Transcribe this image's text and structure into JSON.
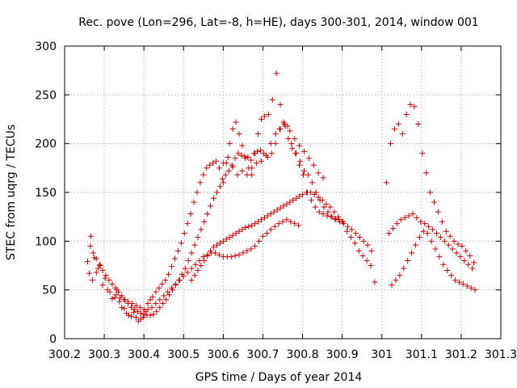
{
  "chart_data": {
    "type": "scatter",
    "title": "Rec. pove (Lon=296, Lat=-8, h=HE), days 300-301, 2014, window 001",
    "xlabel": "GPS time / Days of year 2014",
    "ylabel": "STEC from uqrg / TECUs",
    "xlim": [
      300.2,
      301.3
    ],
    "ylim": [
      0,
      300
    ],
    "xticks": [
      300.2,
      300.3,
      300.4,
      300.5,
      300.6,
      300.7,
      300.8,
      300.9,
      301.0,
      301.1,
      301.2,
      301.3
    ],
    "xtick_labels": [
      "300.2",
      "300.3",
      "300.4",
      "300.5",
      "300.6",
      "300.7",
      "300.8",
      "300.9",
      "301",
      "301.1",
      "301.2",
      "301.3"
    ],
    "yticks": [
      0,
      50,
      100,
      150,
      200,
      250,
      300
    ],
    "ytick_labels": [
      "0",
      "50",
      "100",
      "150",
      "200",
      "250",
      "300"
    ],
    "grid": true,
    "marker": "+",
    "color": "#cc0000",
    "x": [
      300.258,
      300.262,
      300.266,
      300.27,
      300.275,
      300.28,
      300.285,
      300.29,
      300.296,
      300.302,
      300.308,
      300.314,
      300.32,
      300.326,
      300.332,
      300.338,
      300.344,
      300.35,
      300.356,
      300.362,
      300.368,
      300.374,
      300.38,
      300.386,
      300.392,
      300.398,
      300.404,
      300.41,
      300.416,
      300.422,
      300.43,
      300.438,
      300.446,
      300.454,
      300.462,
      300.47,
      300.478,
      300.486,
      300.494,
      300.502,
      300.51,
      300.518,
      300.526,
      300.534,
      300.542,
      300.55,
      300.558,
      300.566,
      300.574,
      300.582,
      300.59,
      300.598,
      300.606,
      300.614,
      300.622,
      300.63,
      300.638,
      300.646,
      300.654,
      300.662,
      300.67,
      300.678,
      300.686,
      300.694,
      300.702,
      300.712,
      300.722,
      300.732,
      300.742,
      300.752,
      300.762,
      300.772,
      300.782,
      300.792,
      300.802,
      300.812,
      300.822,
      300.832,
      300.842,
      300.852,
      300.862,
      300.872,
      300.882,
      300.892,
      300.902,
      300.912,
      300.922,
      300.932,
      300.942,
      300.952,
      300.962,
      300.972,
      300.982,
      301.012,
      301.022,
      301.032,
      301.042,
      301.052,
      301.062,
      301.072,
      301.082,
      301.092,
      301.102,
      301.112,
      301.122,
      301.132,
      301.142,
      301.152,
      301.162,
      301.172,
      301.182,
      301.192,
      301.202,
      301.212,
      301.222,
      301.232,
      300.265,
      300.272,
      300.28,
      300.288,
      300.296,
      300.304,
      300.312,
      300.32,
      300.328,
      300.336,
      300.344,
      300.352,
      300.36,
      300.368,
      300.376,
      300.384,
      300.392,
      300.4,
      300.408,
      300.416,
      300.424,
      300.432,
      300.44,
      300.448,
      300.456,
      300.464,
      300.472,
      300.48,
      300.488,
      300.496,
      300.504,
      300.512,
      300.52,
      300.528,
      300.536,
      300.544,
      300.552,
      300.56,
      300.568,
      300.576,
      300.584,
      300.592,
      300.6,
      300.608,
      300.616,
      300.624,
      300.632,
      300.64,
      300.648,
      300.656,
      300.664,
      300.672,
      300.68,
      300.688,
      300.696,
      300.704,
      300.714,
      300.724,
      300.734,
      300.744,
      300.754,
      300.764,
      300.774,
      300.784,
      300.794,
      300.804,
      300.814,
      300.824,
      300.834,
      300.844,
      300.854,
      300.864,
      300.874,
      300.884,
      300.894,
      300.904,
      300.914,
      300.924,
      300.934,
      300.944,
      300.954,
      300.964,
      300.974,
      301.018,
      301.028,
      301.038,
      301.048,
      301.058,
      301.068,
      301.078,
      301.088,
      301.098,
      301.108,
      301.118,
      301.128,
      301.138,
      301.148,
      301.158,
      301.168,
      301.178,
      301.188,
      301.198,
      301.208,
      301.218,
      301.228,
      300.33,
      300.34,
      300.35,
      300.36,
      300.37,
      300.38,
      300.39,
      300.4,
      300.41,
      300.42,
      300.43,
      300.44,
      300.45,
      300.46,
      300.47,
      300.48,
      300.49,
      300.5,
      300.51,
      300.52,
      300.53,
      300.54,
      300.55,
      300.56,
      300.57,
      300.58,
      300.59,
      300.6,
      300.61,
      300.62,
      300.63,
      300.64,
      300.65,
      300.66,
      300.67,
      300.68,
      300.69,
      300.7,
      300.71,
      300.72,
      300.73,
      300.74,
      300.75,
      300.76,
      300.77,
      300.78,
      300.79,
      300.52,
      300.528,
      300.536,
      300.544,
      300.552,
      300.56,
      300.568,
      300.576,
      300.584,
      300.592,
      300.6,
      300.608,
      300.616,
      300.624,
      300.632,
      300.64,
      300.648,
      300.656,
      300.664,
      300.672,
      300.68,
      300.688,
      300.696,
      300.704,
      300.712,
      300.72,
      300.728,
      300.736,
      300.744,
      300.752,
      300.76,
      300.768,
      300.776,
      300.784,
      300.792,
      300.8,
      300.81,
      300.82,
      300.83,
      300.84,
      300.85,
      300.86,
      300.87,
      300.88,
      300.89,
      300.9,
      300.6,
      300.612,
      300.624,
      300.636,
      300.648,
      300.66,
      300.672,
      300.684,
      300.696,
      300.708,
      300.72,
      300.732,
      300.744,
      300.756,
      300.768,
      300.78,
      300.792,
      300.804,
      300.816,
      300.828,
      300.84,
      300.852,
      301.025,
      301.035,
      301.045,
      301.055,
      301.065,
      301.075,
      301.085,
      301.095,
      301.105,
      301.115,
      301.125,
      301.135,
      301.145,
      301.155,
      301.165,
      301.175,
      301.185,
      301.195,
      301.205,
      301.215,
      301.225,
      301.235
    ],
    "y": [
      79,
      67,
      105,
      60,
      83,
      68,
      72,
      75,
      55,
      62,
      50,
      48,
      41,
      42,
      50,
      38,
      32,
      31,
      26,
      24,
      23,
      27,
      22,
      18,
      20,
      22,
      28,
      36,
      40,
      43,
      48,
      52,
      56,
      60,
      66,
      74,
      82,
      90,
      98,
      108,
      118,
      128,
      140,
      150,
      160,
      168,
      175,
      178,
      180,
      182,
      175,
      164,
      168,
      172,
      178,
      185,
      190,
      188,
      187,
      186,
      183,
      190,
      192,
      193,
      190,
      186,
      190,
      200,
      215,
      222,
      218,
      200,
      190,
      178,
      168,
      150,
      142,
      135,
      130,
      128,
      126,
      125,
      123,
      122,
      120,
      110,
      104,
      98,
      90,
      85,
      80,
      75,
      58,
      160,
      200,
      215,
      220,
      210,
      230,
      240,
      238,
      220,
      190,
      170,
      150,
      140,
      130,
      120,
      110,
      105,
      100,
      97,
      95,
      90,
      85,
      78,
      95,
      88,
      82,
      76,
      70,
      65,
      60,
      56,
      52,
      48,
      44,
      40,
      36,
      32,
      30,
      28,
      26,
      25,
      24,
      24,
      25,
      28,
      32,
      36,
      40,
      45,
      50,
      55,
      60,
      66,
      72,
      80,
      88,
      96,
      104,
      112,
      120,
      128,
      136,
      144,
      150,
      156,
      160,
      180,
      200,
      215,
      222,
      210,
      198,
      185,
      175,
      168,
      190,
      210,
      225,
      228,
      230,
      245,
      272,
      240,
      220,
      205,
      195,
      190,
      182,
      172,
      168,
      160,
      150,
      142,
      135,
      130,
      125,
      122,
      120,
      118,
      115,
      112,
      108,
      104,
      100,
      96,
      90,
      108,
      113,
      118,
      122,
      124,
      126,
      128,
      124,
      120,
      118,
      115,
      112,
      108,
      104,
      100,
      96,
      92,
      88,
      84,
      80,
      76,
      72,
      45,
      42,
      40,
      38,
      36,
      34,
      32,
      30,
      30,
      32,
      36,
      40,
      44,
      48,
      52,
      56,
      60,
      64,
      68,
      72,
      76,
      80,
      84,
      86,
      88,
      88,
      86,
      84,
      84,
      84,
      85,
      86,
      88,
      90,
      92,
      95,
      100,
      105,
      108,
      112,
      115,
      118,
      120,
      122,
      120,
      118,
      116,
      60,
      65,
      70,
      75,
      80,
      85,
      90,
      94,
      96,
      98,
      100,
      102,
      104,
      106,
      108,
      110,
      112,
      114,
      115,
      116,
      118,
      120,
      122,
      124,
      126,
      128,
      130,
      132,
      134,
      136,
      138,
      140,
      142,
      144,
      146,
      148,
      150,
      150,
      148,
      145,
      142,
      138,
      135,
      130,
      125,
      120,
      180,
      186,
      176,
      168,
      172,
      168,
      175,
      180,
      182,
      188,
      200,
      210,
      215,
      218,
      213,
      205,
      198,
      192,
      185,
      178,
      170,
      165,
      55,
      60,
      65,
      72,
      80,
      88,
      96,
      104,
      110,
      108,
      100,
      92,
      84,
      76,
      70,
      65,
      60,
      58,
      56,
      54,
      52,
      50
    ]
  }
}
